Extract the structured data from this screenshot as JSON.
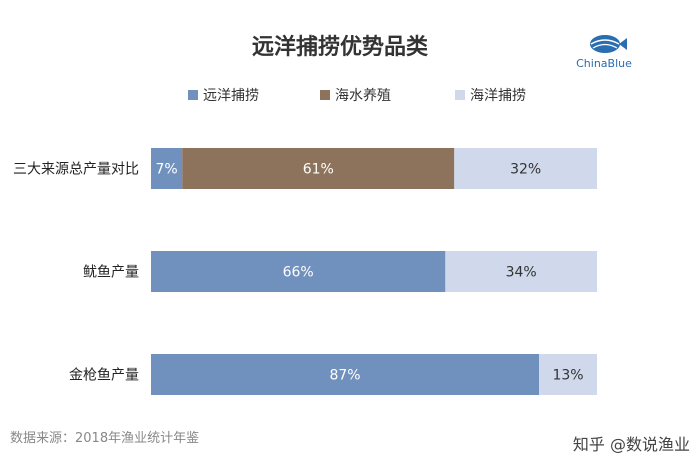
{
  "logo": {
    "text": "ChinaBlue"
  },
  "source": "数据来源：2018年渔业统计年鉴",
  "watermark": "知乎 @数说渔业",
  "colors": {
    "far_sea": "#7090be",
    "mariculture": "#8e735c",
    "sea_fishing": "#cfd9eb"
  },
  "chart_data": {
    "type": "bar",
    "orientation": "horizontal",
    "stacked": true,
    "title": "远洋捕捞优势品类",
    "legend_position": "top",
    "categories": [
      "三大来源总产量对比",
      "鱿鱼产量",
      "金枪鱼产量"
    ],
    "series": [
      {
        "name": "远洋捕捞",
        "values": [
          7,
          66,
          87
        ],
        "labels": [
          "7%",
          "66%",
          "87%"
        ]
      },
      {
        "name": "海水养殖",
        "values": [
          61,
          0,
          0
        ],
        "labels": [
          "61%",
          "",
          ""
        ]
      },
      {
        "name": "海洋捕捞",
        "values": [
          32,
          34,
          13
        ],
        "labels": [
          "32%",
          "34%",
          "13%"
        ]
      }
    ],
    "xlim": [
      0,
      100
    ],
    "grid": false
  }
}
